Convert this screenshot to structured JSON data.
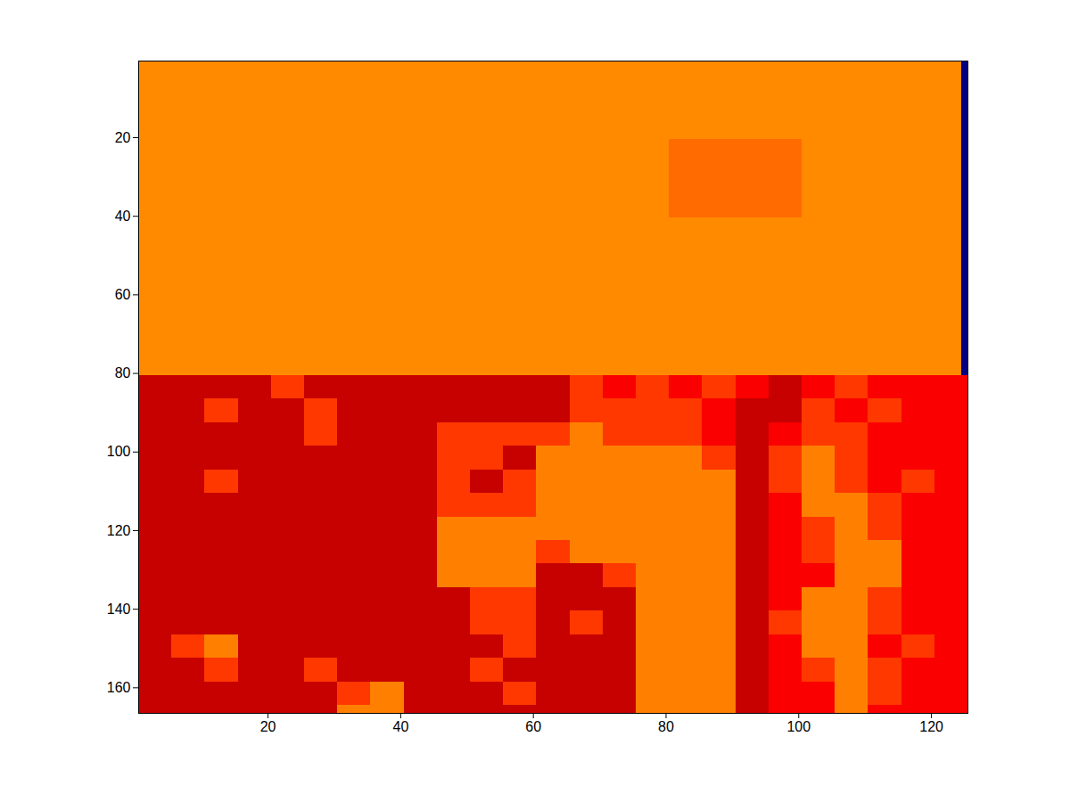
{
  "chart_data": {
    "type": "heatmap",
    "color": "jet",
    "zlim": [
      0,
      1
    ],
    "xlim": [
      0.5,
      125.5
    ],
    "ylim": [
      166.5,
      0.5
    ],
    "xticks": [
      20,
      40,
      60,
      80,
      100,
      120
    ],
    "yticks": [
      20,
      40,
      60,
      80,
      100,
      120,
      140,
      160
    ],
    "grid": false,
    "x_edges": [
      0.5,
      5.5,
      10.5,
      15.5,
      20.5,
      25.5,
      30.5,
      35.5,
      40.5,
      45.5,
      50.5,
      55.5,
      60.5,
      65.5,
      70.5,
      75.5,
      80.5,
      85.5,
      90.5,
      95.5,
      100.5,
      105.5,
      110.5,
      115.5,
      120.5,
      124.5,
      125.5
    ],
    "y_edges": [
      0.5,
      20.5,
      40.5,
      60.5,
      80.5,
      86.5,
      92.5,
      98.5,
      104.5,
      110.5,
      116.5,
      122.5,
      128.5,
      134.5,
      140.5,
      146.5,
      152.5,
      158.5,
      164.5,
      166.5
    ],
    "z": [
      [
        0.74,
        0.74,
        0.74,
        0.74,
        0.74,
        0.74,
        0.74,
        0.74,
        0.74,
        0.74,
        0.74,
        0.74,
        0.74,
        0.74,
        0.74,
        0.74,
        0.74,
        0.74,
        0.74,
        0.74,
        0.74,
        0.74,
        0.74,
        0.74,
        0.74,
        0
      ],
      [
        0.74,
        0.74,
        0.74,
        0.74,
        0.74,
        0.74,
        0.74,
        0.74,
        0.74,
        0.74,
        0.74,
        0.74,
        0.74,
        0.74,
        0.74,
        0.74,
        0.77,
        0.77,
        0.77,
        0.77,
        0.74,
        0.74,
        0.74,
        0.74,
        0.74,
        0
      ],
      [
        0.74,
        0.74,
        0.74,
        0.74,
        0.74,
        0.74,
        0.74,
        0.74,
        0.74,
        0.74,
        0.74,
        0.74,
        0.74,
        0.74,
        0.74,
        0.74,
        0.74,
        0.74,
        0.74,
        0.74,
        0.74,
        0.74,
        0.74,
        0.74,
        0.74,
        0
      ],
      [
        0.74,
        0.74,
        0.74,
        0.74,
        0.74,
        0.74,
        0.74,
        0.74,
        0.74,
        0.74,
        0.74,
        0.74,
        0.74,
        0.74,
        0.74,
        0.74,
        0.74,
        0.74,
        0.74,
        0.74,
        0.74,
        0.74,
        0.74,
        0.74,
        0.74,
        0
      ],
      [
        0.93,
        0.93,
        0.93,
        0.93,
        0.82,
        0.93,
        0.93,
        0.93,
        0.93,
        0.93,
        0.93,
        0.93,
        0.93,
        0.82,
        0.88,
        0.82,
        0.88,
        0.82,
        0.88,
        0.93,
        0.88,
        0.82,
        0.88,
        0.88,
        0.88,
        0.88
      ],
      [
        0.93,
        0.93,
        0.82,
        0.93,
        0.93,
        0.82,
        0.93,
        0.93,
        0.93,
        0.93,
        0.93,
        0.93,
        0.93,
        0.82,
        0.82,
        0.82,
        0.82,
        0.88,
        0.93,
        0.93,
        0.82,
        0.88,
        0.82,
        0.88,
        0.88,
        0.88
      ],
      [
        0.93,
        0.93,
        0.93,
        0.93,
        0.93,
        0.82,
        0.93,
        0.93,
        0.93,
        0.82,
        0.82,
        0.82,
        0.82,
        0.75,
        0.82,
        0.82,
        0.82,
        0.88,
        0.93,
        0.88,
        0.82,
        0.82,
        0.88,
        0.88,
        0.88,
        0.88
      ],
      [
        0.93,
        0.93,
        0.93,
        0.93,
        0.93,
        0.93,
        0.93,
        0.93,
        0.93,
        0.82,
        0.82,
        0.93,
        0.75,
        0.75,
        0.75,
        0.75,
        0.75,
        0.82,
        0.93,
        0.82,
        0.75,
        0.82,
        0.88,
        0.88,
        0.88,
        0.88
      ],
      [
        0.93,
        0.93,
        0.82,
        0.93,
        0.93,
        0.93,
        0.93,
        0.93,
        0.93,
        0.82,
        0.93,
        0.82,
        0.75,
        0.75,
        0.75,
        0.75,
        0.75,
        0.75,
        0.93,
        0.82,
        0.75,
        0.82,
        0.88,
        0.82,
        0.88,
        0.88
      ],
      [
        0.93,
        0.93,
        0.93,
        0.93,
        0.93,
        0.93,
        0.93,
        0.93,
        0.93,
        0.82,
        0.82,
        0.82,
        0.75,
        0.75,
        0.75,
        0.75,
        0.75,
        0.75,
        0.93,
        0.88,
        0.75,
        0.75,
        0.82,
        0.88,
        0.88,
        0.88
      ],
      [
        0.93,
        0.93,
        0.93,
        0.93,
        0.93,
        0.93,
        0.93,
        0.93,
        0.93,
        0.75,
        0.75,
        0.75,
        0.75,
        0.75,
        0.75,
        0.75,
        0.75,
        0.75,
        0.93,
        0.88,
        0.82,
        0.75,
        0.82,
        0.88,
        0.88,
        0.88
      ],
      [
        0.93,
        0.93,
        0.93,
        0.93,
        0.93,
        0.93,
        0.93,
        0.93,
        0.93,
        0.75,
        0.75,
        0.75,
        0.82,
        0.75,
        0.75,
        0.75,
        0.75,
        0.75,
        0.93,
        0.88,
        0.82,
        0.75,
        0.75,
        0.88,
        0.88,
        0.88
      ],
      [
        0.93,
        0.93,
        0.93,
        0.93,
        0.93,
        0.93,
        0.93,
        0.93,
        0.93,
        0.75,
        0.75,
        0.75,
        0.93,
        0.93,
        0.82,
        0.75,
        0.75,
        0.75,
        0.93,
        0.88,
        0.88,
        0.75,
        0.75,
        0.88,
        0.88,
        0.88
      ],
      [
        0.93,
        0.93,
        0.93,
        0.93,
        0.93,
        0.93,
        0.93,
        0.93,
        0.93,
        0.93,
        0.82,
        0.82,
        0.93,
        0.93,
        0.93,
        0.75,
        0.75,
        0.75,
        0.93,
        0.88,
        0.75,
        0.75,
        0.82,
        0.88,
        0.88,
        0.88
      ],
      [
        0.93,
        0.93,
        0.93,
        0.93,
        0.93,
        0.93,
        0.93,
        0.93,
        0.93,
        0.93,
        0.82,
        0.82,
        0.93,
        0.82,
        0.93,
        0.75,
        0.75,
        0.75,
        0.93,
        0.82,
        0.75,
        0.75,
        0.82,
        0.88,
        0.88,
        0.88
      ],
      [
        0.93,
        0.82,
        0.75,
        0.93,
        0.93,
        0.93,
        0.93,
        0.93,
        0.93,
        0.93,
        0.93,
        0.82,
        0.93,
        0.93,
        0.93,
        0.75,
        0.75,
        0.75,
        0.93,
        0.88,
        0.75,
        0.75,
        0.88,
        0.82,
        0.88,
        0.88
      ],
      [
        0.93,
        0.93,
        0.82,
        0.93,
        0.93,
        0.82,
        0.93,
        0.93,
        0.93,
        0.93,
        0.82,
        0.93,
        0.93,
        0.93,
        0.93,
        0.75,
        0.75,
        0.75,
        0.93,
        0.88,
        0.82,
        0.75,
        0.82,
        0.88,
        0.88,
        0.88
      ],
      [
        0.93,
        0.93,
        0.93,
        0.93,
        0.93,
        0.93,
        0.82,
        0.75,
        0.93,
        0.93,
        0.93,
        0.82,
        0.93,
        0.93,
        0.93,
        0.75,
        0.75,
        0.75,
        0.93,
        0.88,
        0.88,
        0.75,
        0.82,
        0.88,
        0.88,
        0.88
      ],
      [
        0.93,
        0.93,
        0.93,
        0.93,
        0.93,
        0.93,
        0.75,
        0.75,
        0.93,
        0.93,
        0.93,
        0.93,
        0.93,
        0.93,
        0.93,
        0.75,
        0.75,
        0.75,
        0.93,
        0.88,
        0.88,
        0.75,
        0.88,
        0.88,
        0.88,
        0.88
      ]
    ]
  }
}
